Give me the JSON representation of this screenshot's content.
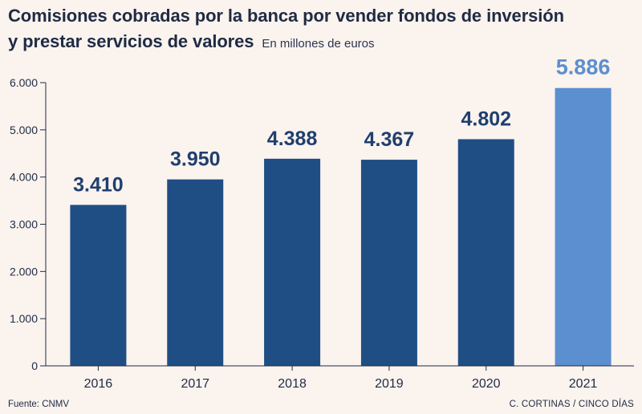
{
  "header": {
    "title_line1": "Comisiones cobradas por la banca por vender fondos de inversión",
    "title_line2": "y prestar servicios de valores",
    "subtitle": "En millones de euros"
  },
  "footer": {
    "source": "Fuente: CNMV",
    "credit": "C. CORTINAS / CINCO DÍAS"
  },
  "colors": {
    "bar": "#1f4e84",
    "highlight_bar": "#5b8fcf",
    "label": "#1f3f6e",
    "highlight_label": "#5b8fcf",
    "axis_text": "#1f2b44",
    "grid": "#dfe4ea",
    "background": "#fbf3ee"
  },
  "chart_data": {
    "type": "bar",
    "categories": [
      "2016",
      "2017",
      "2018",
      "2019",
      "2020",
      "2021"
    ],
    "values": [
      3410,
      3950,
      4388,
      4367,
      4802,
      5886
    ],
    "value_labels": [
      "3.410",
      "3.950",
      "4.388",
      "4.367",
      "4.802",
      "5.886"
    ],
    "highlight_index": 5,
    "ylim": [
      0,
      6000
    ],
    "yticks": [
      0,
      1000,
      2000,
      3000,
      4000,
      5000,
      6000
    ],
    "ytick_labels": [
      "0",
      "1.000",
      "2.000",
      "3.000",
      "4.000",
      "5.000",
      "6.000"
    ],
    "grid": false,
    "legend": "none"
  }
}
